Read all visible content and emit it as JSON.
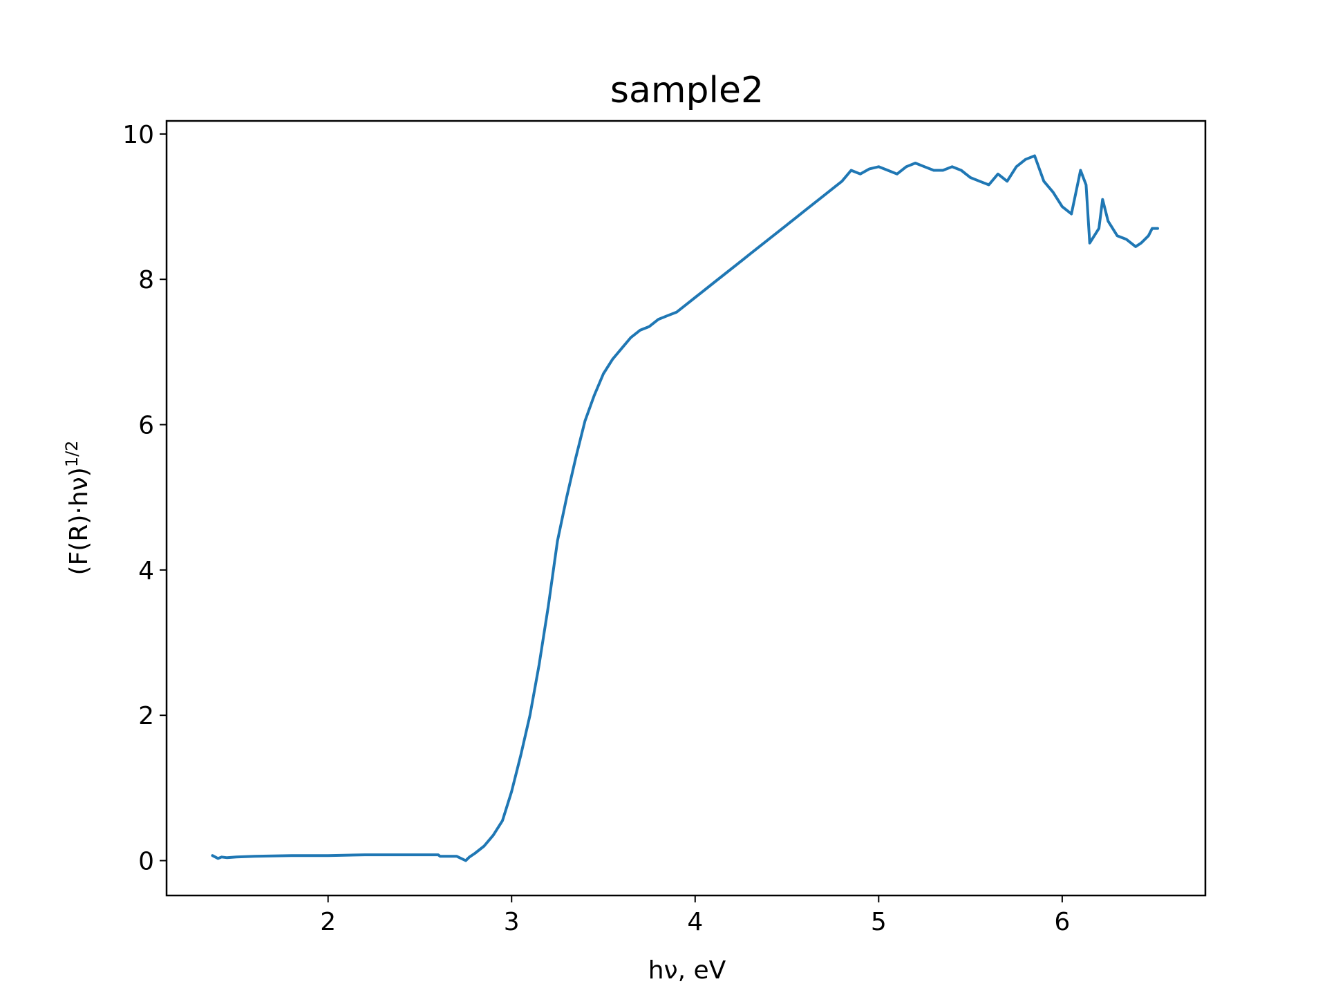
{
  "chart_data": {
    "type": "line",
    "title": "sample2",
    "xlabel": "hν, eV",
    "ylabel_main": "(F(R)·hν)",
    "ylabel_sup": "1/2",
    "xlim": [
      1.12,
      6.78
    ],
    "ylim": [
      -0.48,
      10.18
    ],
    "xticks": [
      2,
      3,
      4,
      5,
      6
    ],
    "yticks": [
      0,
      2,
      4,
      6,
      8,
      10
    ],
    "grid": false,
    "line_color": "#1f77b4",
    "series": [
      {
        "x": [
          1.37,
          1.4,
          1.42,
          1.45,
          1.5,
          1.6,
          1.8,
          2.0,
          2.2,
          2.4,
          2.6,
          2.61,
          2.7,
          2.75,
          2.77,
          2.8,
          2.85,
          2.9,
          2.95,
          3.0,
          3.05,
          3.1,
          3.15,
          3.2,
          3.25,
          3.3,
          3.35,
          3.4,
          3.45,
          3.5,
          3.55,
          3.6,
          3.65,
          3.7,
          3.75,
          3.8,
          3.85,
          3.9,
          3.95,
          4.0,
          4.05,
          4.1,
          4.15,
          4.2,
          4.25,
          4.3,
          4.35,
          4.4,
          4.45,
          4.5,
          4.55,
          4.6,
          4.65,
          4.7,
          4.75,
          4.8,
          4.85,
          4.9,
          4.95,
          5.0,
          5.05,
          5.1,
          5.15,
          5.2,
          5.25,
          5.3,
          5.35,
          5.4,
          5.45,
          5.5,
          5.55,
          5.6,
          5.65,
          5.7,
          5.75,
          5.8,
          5.85,
          5.9,
          5.95,
          6.0,
          6.05,
          6.1,
          6.13,
          6.15,
          6.2,
          6.22,
          6.25,
          6.3,
          6.35,
          6.4,
          6.43,
          6.47,
          6.49,
          6.52
        ],
        "y": [
          0.07,
          0.03,
          0.05,
          0.04,
          0.05,
          0.06,
          0.07,
          0.07,
          0.08,
          0.08,
          0.08,
          0.06,
          0.06,
          0.0,
          0.05,
          0.1,
          0.2,
          0.35,
          0.55,
          0.95,
          1.45,
          2.0,
          2.7,
          3.5,
          4.4,
          5.0,
          5.55,
          6.05,
          6.4,
          6.7,
          6.9,
          7.05,
          7.2,
          7.3,
          7.35,
          7.45,
          7.5,
          7.55,
          7.65,
          7.75,
          7.85,
          7.95,
          8.05,
          8.15,
          8.25,
          8.35,
          8.45,
          8.55,
          8.65,
          8.75,
          8.85,
          8.95,
          9.05,
          9.15,
          9.25,
          9.35,
          9.5,
          9.45,
          9.52,
          9.55,
          9.5,
          9.45,
          9.55,
          9.6,
          9.55,
          9.5,
          9.5,
          9.55,
          9.5,
          9.4,
          9.35,
          9.3,
          9.45,
          9.35,
          9.55,
          9.65,
          9.7,
          9.35,
          9.2,
          9.0,
          8.9,
          9.5,
          9.3,
          8.5,
          8.7,
          9.1,
          8.8,
          8.6,
          8.55,
          8.45,
          8.5,
          8.6,
          8.7,
          8.7
        ],
        "name": ""
      }
    ]
  }
}
